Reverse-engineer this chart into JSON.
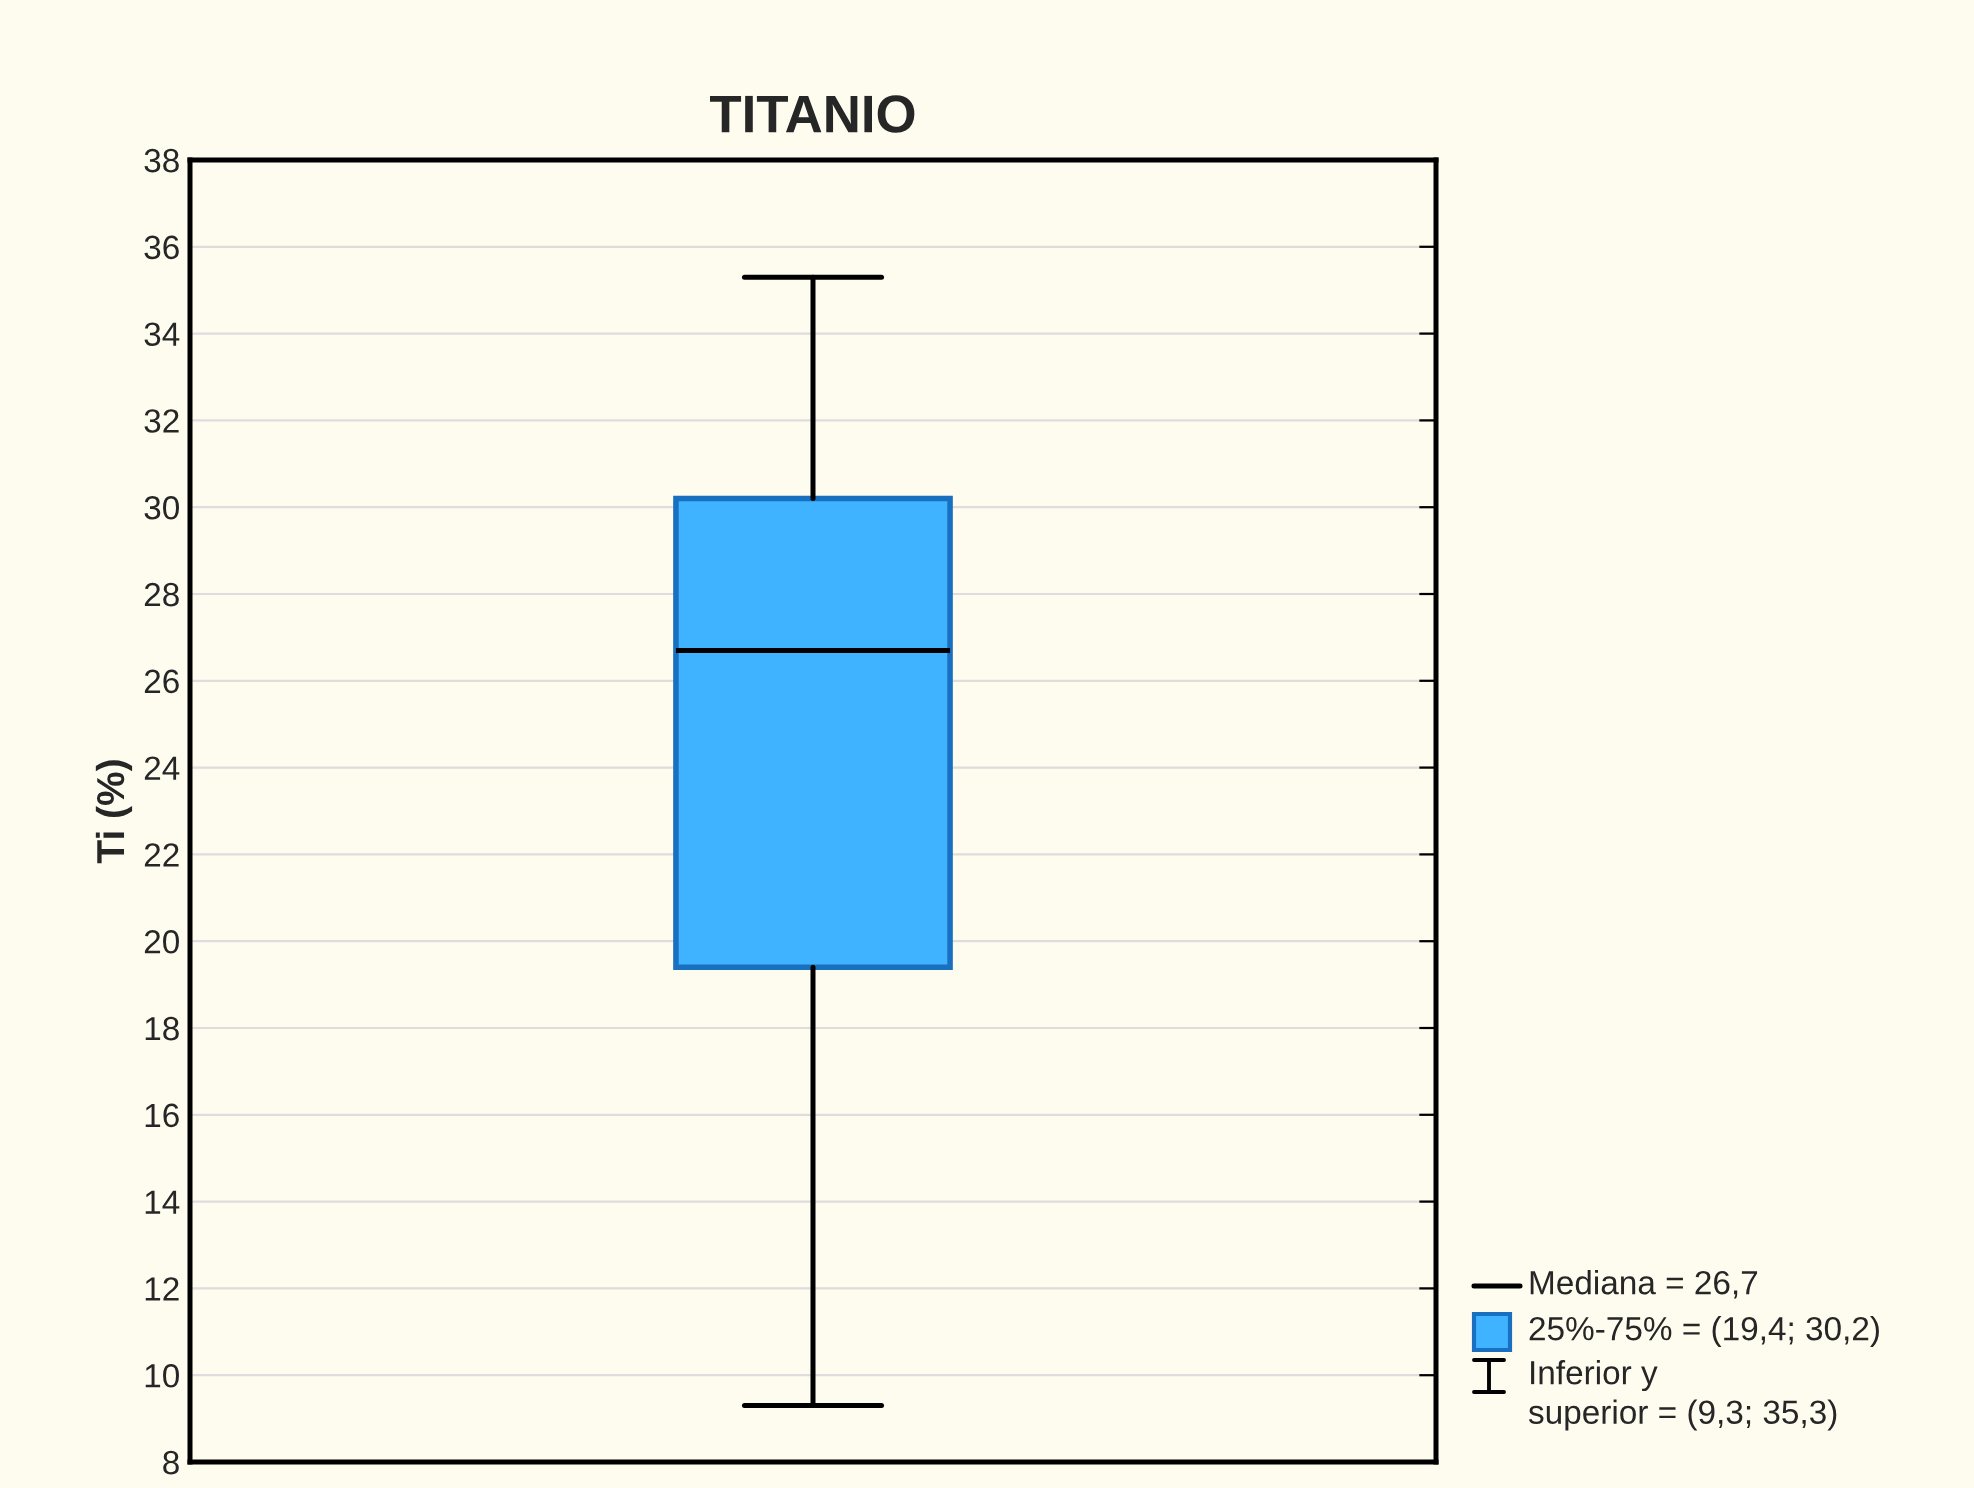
{
  "chart_data": {
    "type": "box",
    "title": "TITANIO",
    "ylabel": "Ti (%)",
    "categories": [
      null
    ],
    "series": [
      {
        "color": "#3fb3ff",
        "boxes": [
          {
            "low": 9.3,
            "q1": 19.4,
            "median": 26.7,
            "q3": 30.2,
            "high": 35.3
          }
        ]
      }
    ],
    "ylim": [
      8,
      38
    ],
    "yticks": [
      8,
      10,
      12,
      14,
      16,
      18,
      20,
      22,
      24,
      26,
      28,
      30,
      32,
      34,
      36,
      38
    ],
    "grid": "y",
    "tick_labels": "y",
    "annotations": [
      "Mediana = 26,7",
      "25%-75% = (19,4; 30,2)",
      "Inferior y\nsuperior = (9,3; 35,3)"
    ]
  }
}
